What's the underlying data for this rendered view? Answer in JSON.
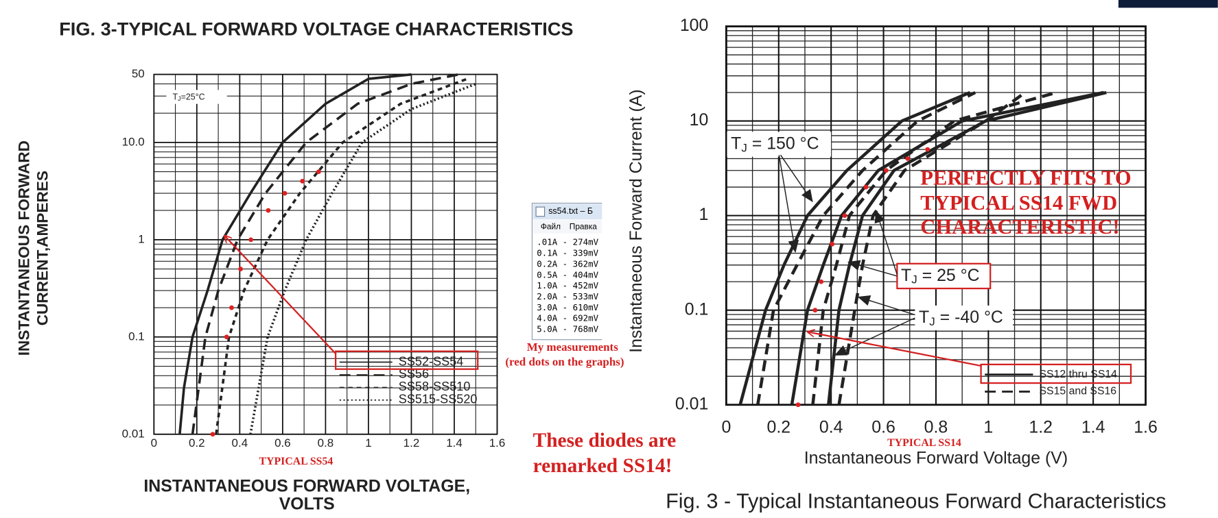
{
  "chart_data": [
    {
      "type": "line",
      "title": "FIG. 3-TYPICAL FORWARD VOLTAGE CHARACTERISTICS",
      "x_label": [
        "INSTANTANEOUS FORWARD VOLTAGE,",
        "VOLTS"
      ],
      "y_label": [
        "INSTANTANEOUS FORWARD",
        "CURRENT,AMPERES"
      ],
      "xlim": [
        0,
        1.6
      ],
      "ylim": [
        0.01,
        50
      ],
      "xticks": [
        0,
        0.2,
        0.4,
        0.6,
        0.8,
        1.0,
        1.2,
        1.4,
        1.6
      ],
      "yticks": [
        0.01,
        0.1,
        1,
        {
          "value": 10,
          "label": "10.0"
        },
        50
      ],
      "log_y": true,
      "grid": true,
      "minor_grid": true,
      "legend": "lower right",
      "labels": [
        {
          "t": "T",
          "sub": "J",
          "text": "=25°C"
        }
      ],
      "series": [
        {
          "name": "SS52-SS54",
          "color": "#222222",
          "dash": "solid",
          "x": [
            0.12,
            0.14,
            0.18,
            0.25,
            0.32,
            0.45,
            0.6,
            0.8,
            1.0,
            1.2
          ],
          "values": [
            0.01,
            0.03,
            0.1,
            0.3,
            1,
            3,
            10,
            25,
            45,
            50
          ]
        },
        {
          "name": "SS56",
          "color": "#222222",
          "dash": "long",
          "x": [
            0.18,
            0.24,
            0.3,
            0.39,
            0.52,
            0.71,
            0.95,
            1.2,
            1.42
          ],
          "values": [
            0.01,
            0.1,
            0.3,
            1,
            3,
            10,
            25,
            40,
            50
          ]
        },
        {
          "name": "SS58-SS510",
          "color": "#222222",
          "dash": "short",
          "x": [
            0.29,
            0.35,
            0.42,
            0.53,
            0.68,
            0.88,
            1.15,
            1.46
          ],
          "values": [
            0.01,
            0.1,
            0.3,
            1,
            3,
            10,
            25,
            45
          ]
        },
        {
          "name": "SS515-SS520",
          "color": "#222222",
          "dash": "dotted",
          "x": [
            0.45,
            0.53,
            0.61,
            0.71,
            0.83,
            0.97,
            1.2,
            1.5
          ],
          "values": [
            0.01,
            0.1,
            0.3,
            1,
            3,
            10,
            22,
            40
          ]
        }
      ],
      "points": {
        "color": "#e02020",
        "x": [
          0.274,
          0.339,
          0.362,
          0.404,
          0.452,
          0.533,
          0.61,
          0.692,
          0.768
        ],
        "values": [
          0.01,
          0.1,
          0.2,
          0.5,
          1,
          2,
          3,
          4,
          5
        ]
      }
    },
    {
      "type": "line",
      "title": "Fig. 3 - Typical Instantaneous Forward Characteristics",
      "x_label": [
        "Instantaneous Forward Voltage (V)"
      ],
      "y_label": [
        "Instantaneous Forward Current (A)"
      ],
      "xlim": [
        0,
        1.6
      ],
      "ylim": [
        0.01,
        100
      ],
      "xticks": [
        0,
        0.2,
        0.4,
        0.6,
        0.8,
        1.0,
        1.2,
        1.4,
        1.6
      ],
      "yticks": [
        0.01,
        0.1,
        1,
        10,
        100
      ],
      "log_y": true,
      "grid": true,
      "minor_grid": true,
      "legend": "lower right",
      "labels": [
        {
          "t": "T",
          "sub": "J",
          "text": " = 150 °C"
        },
        {
          "t": "T",
          "sub": "J",
          "text": " = 25 °C"
        },
        {
          "t": "T",
          "sub": "J",
          "text": " = -40 °C"
        }
      ],
      "series": [
        {
          "name": "SS12 thru SS14",
          "color": "#222222",
          "dash": "solid",
          "curves": [
            {
              "x": [
                0.053,
                0.15,
                0.22,
                0.31,
                0.46,
                0.67,
                0.93
              ],
              "values": [
                0.01,
                0.1,
                0.3,
                1,
                3,
                10,
                20
              ]
            },
            {
              "x": [
                0.25,
                0.31,
                0.37,
                0.44,
                0.58,
                0.9,
                1.44
              ],
              "values": [
                0.01,
                0.1,
                0.3,
                1,
                3,
                10,
                20
              ]
            },
            {
              "x": [
                0.39,
                0.43,
                0.47,
                0.52,
                0.64,
                0.99,
                1.45
              ],
              "values": [
                0.01,
                0.1,
                0.3,
                1,
                3,
                10,
                20
              ]
            }
          ]
        },
        {
          "name": "SS15 and SS16",
          "color": "#222222",
          "dash": "long",
          "curves": [
            {
              "x": [
                0.12,
                0.18,
                0.27,
                0.37,
                0.52,
                0.73,
                0.95
              ],
              "values": [
                0.01,
                0.1,
                0.3,
                1,
                3,
                10,
                20
              ]
            },
            {
              "x": [
                0.33,
                0.37,
                0.42,
                0.47,
                0.61,
                0.87,
                1.26
              ],
              "values": [
                0.01,
                0.1,
                0.3,
                1,
                3,
                10,
                20
              ]
            },
            {
              "x": [
                0.43,
                0.49,
                0.52,
                0.56,
                0.68,
                0.99,
                1.14
              ],
              "values": [
                0.01,
                0.1,
                0.3,
                1,
                3,
                10,
                20
              ]
            }
          ]
        }
      ],
      "points": {
        "color": "#e02020",
        "x": [
          0.274,
          0.339,
          0.362,
          0.404,
          0.452,
          0.533,
          0.61,
          0.692,
          0.768
        ],
        "values": [
          0.01,
          0.1,
          0.2,
          0.5,
          1,
          2,
          3,
          4,
          5
        ]
      }
    }
  ],
  "notepad": {
    "title": "ss54.txt – Б",
    "menu": [
      "Файл",
      "Правка"
    ],
    "lines": [
      ".01A - 274mV",
      "0.1A - 339mV",
      "0.2A - 362mV",
      "0.5A - 404mV",
      "1.0A - 452mV",
      "2.0A - 533mV",
      "3.0A - 610mV",
      "4.0A - 692mV",
      "5.0A - 768mV"
    ]
  },
  "annotations": {
    "measurements": [
      "My measurements",
      "(red dots on the graphs)"
    ],
    "remarked": [
      "These diodes are",
      "remarked SS14!"
    ],
    "fits": [
      "PERFECTLY FITS TO",
      "TYPICAL SS14 FWD",
      "CHARACTERISTIC!"
    ],
    "typical_left": "TYPICAL SS54",
    "typical_right": "TYPICAL SS14"
  }
}
